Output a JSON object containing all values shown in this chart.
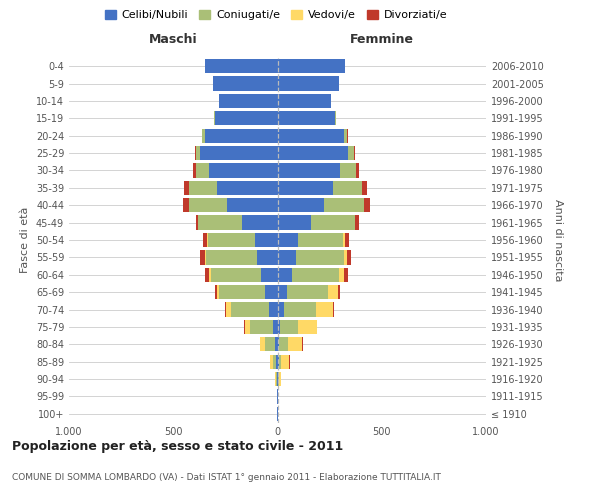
{
  "age_groups": [
    "100+",
    "95-99",
    "90-94",
    "85-89",
    "80-84",
    "75-79",
    "70-74",
    "65-69",
    "60-64",
    "55-59",
    "50-54",
    "45-49",
    "40-44",
    "35-39",
    "30-34",
    "25-29",
    "20-24",
    "15-19",
    "10-14",
    "5-9",
    "0-4"
  ],
  "birth_years": [
    "≤ 1910",
    "1911-1915",
    "1916-1920",
    "1921-1925",
    "1926-1930",
    "1931-1935",
    "1936-1940",
    "1941-1945",
    "1946-1950",
    "1951-1955",
    "1956-1960",
    "1961-1965",
    "1966-1970",
    "1971-1975",
    "1976-1980",
    "1981-1985",
    "1986-1990",
    "1991-1995",
    "1996-2000",
    "2001-2005",
    "2006-2010"
  ],
  "males": {
    "celibi": [
      2,
      2,
      4,
      8,
      12,
      20,
      40,
      60,
      80,
      100,
      110,
      170,
      240,
      290,
      330,
      370,
      350,
      300,
      280,
      310,
      350
    ],
    "coniugati": [
      0,
      1,
      4,
      15,
      50,
      110,
      185,
      220,
      240,
      245,
      225,
      210,
      185,
      135,
      60,
      20,
      10,
      3,
      1,
      0,
      0
    ],
    "vedovi": [
      0,
      0,
      2,
      12,
      22,
      28,
      22,
      12,
      8,
      4,
      2,
      1,
      1,
      0,
      0,
      0,
      0,
      0,
      0,
      0,
      0
    ],
    "divorziati": [
      0,
      0,
      0,
      1,
      2,
      2,
      4,
      8,
      18,
      22,
      18,
      12,
      25,
      25,
      15,
      8,
      4,
      1,
      0,
      0,
      0
    ]
  },
  "females": {
    "nubili": [
      1,
      1,
      3,
      5,
      8,
      14,
      30,
      45,
      70,
      90,
      100,
      160,
      225,
      265,
      300,
      340,
      320,
      275,
      255,
      295,
      325
    ],
    "coniugate": [
      0,
      1,
      4,
      14,
      40,
      85,
      155,
      195,
      225,
      230,
      215,
      210,
      190,
      140,
      75,
      25,
      15,
      5,
      2,
      0,
      0
    ],
    "vedove": [
      1,
      2,
      10,
      38,
      70,
      90,
      80,
      50,
      25,
      12,
      8,
      4,
      2,
      1,
      0,
      0,
      0,
      0,
      0,
      0,
      0
    ],
    "divorziate": [
      0,
      0,
      0,
      1,
      2,
      2,
      4,
      8,
      18,
      22,
      18,
      18,
      28,
      22,
      16,
      8,
      4,
      1,
      0,
      0,
      0
    ]
  },
  "colors": {
    "celibi_nubili": "#4472C4",
    "coniugati": "#AABF77",
    "vedovi": "#FFD966",
    "divorziati": "#C0392B"
  },
  "xlim": 1000,
  "title": "Popolazione per età, sesso e stato civile - 2011",
  "subtitle": "COMUNE DI SOMMA LOMBARDO (VA) - Dati ISTAT 1° gennaio 2011 - Elaborazione TUTTITALIA.IT",
  "ylabel_left": "Fasce di età",
  "ylabel_right": "Anni di nascita",
  "xlabel_ticks": [
    -1000,
    -500,
    0,
    500,
    1000
  ],
  "xlabel_labels": [
    "1.000",
    "500",
    "0",
    "500",
    "1.000"
  ],
  "bg_color": "#FFFFFF"
}
